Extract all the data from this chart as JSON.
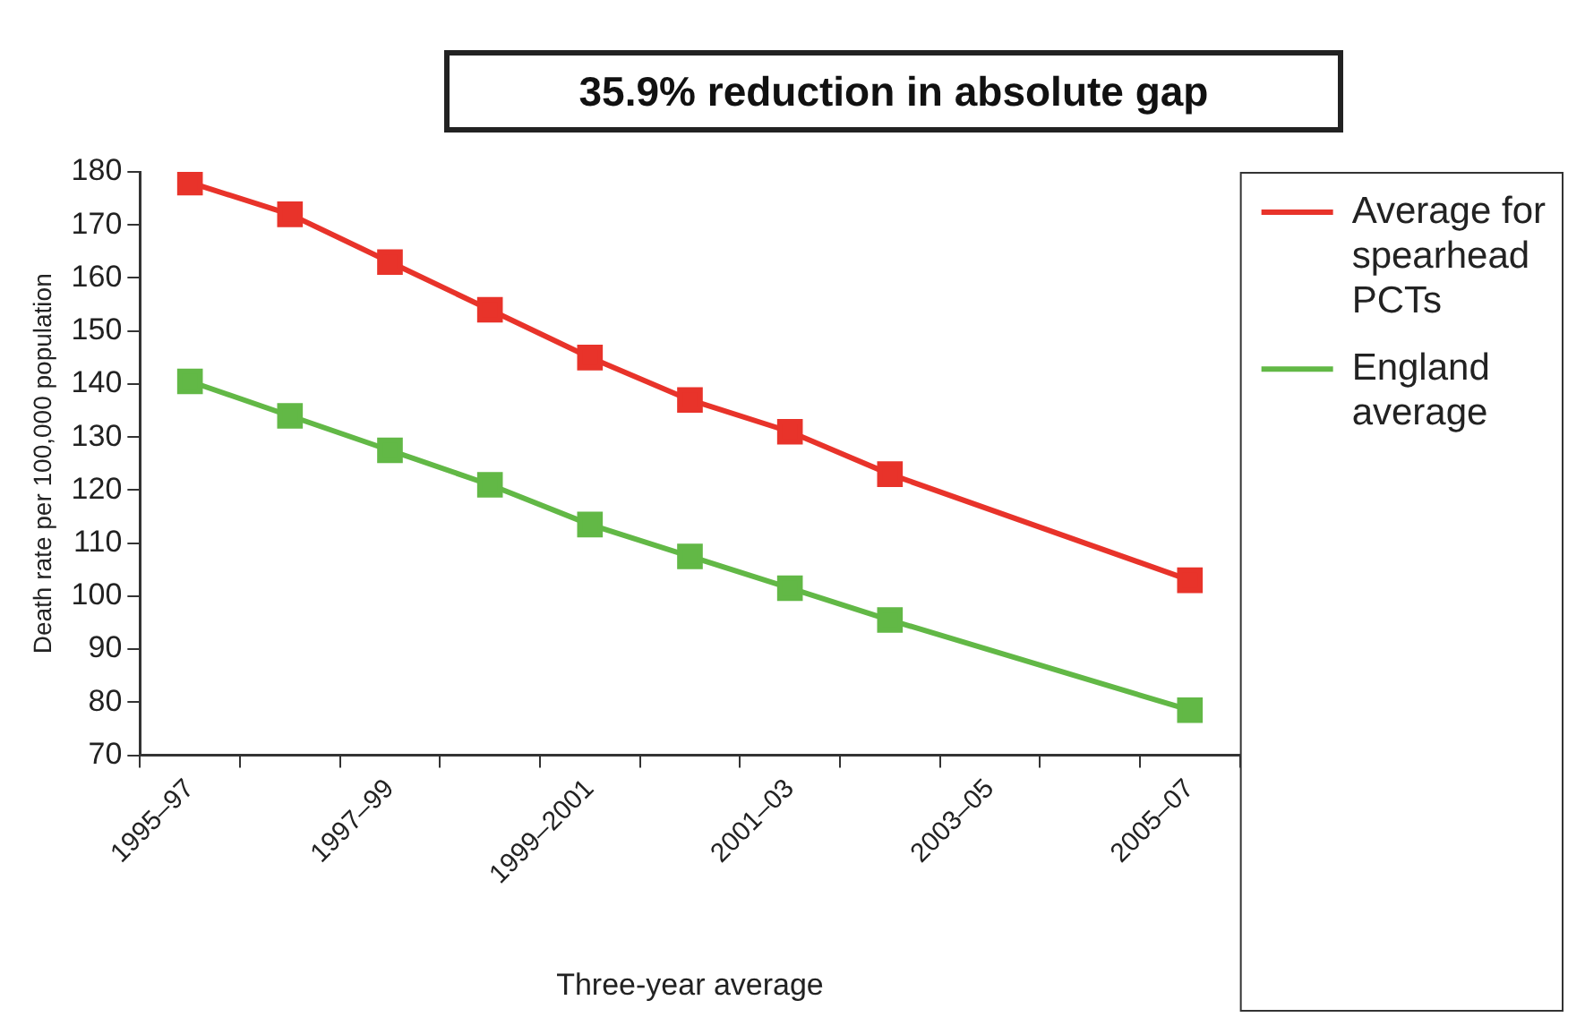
{
  "chart_data": {
    "type": "line",
    "title": "35.9% reduction in absolute gap",
    "xlabel": "Three-year average",
    "ylabel": "Death rate per 100,000 population",
    "categories": [
      "1995–97",
      null,
      "1997–99",
      null,
      "1999–2001",
      null,
      "2001–03",
      null,
      "2003–05",
      null,
      "2005–07"
    ],
    "series": [
      {
        "name": "Average for spearhead PCTs",
        "color": "#e8332a",
        "values": [
          178,
          172,
          163,
          154,
          145,
          137,
          131,
          123,
          null,
          null,
          103
        ]
      },
      {
        "name": "England average",
        "color": "#62b846",
        "values": [
          140.5,
          134,
          127.5,
          121,
          113.5,
          107.5,
          101.5,
          95.5,
          null,
          null,
          78.5
        ]
      }
    ],
    "ylim": [
      70,
      180
    ],
    "yticks": [
      70,
      80,
      90,
      100,
      110,
      120,
      130,
      140,
      150,
      160,
      170,
      180
    ],
    "grid": false,
    "legend": "right",
    "marker": "square",
    "line_style": "solid"
  }
}
